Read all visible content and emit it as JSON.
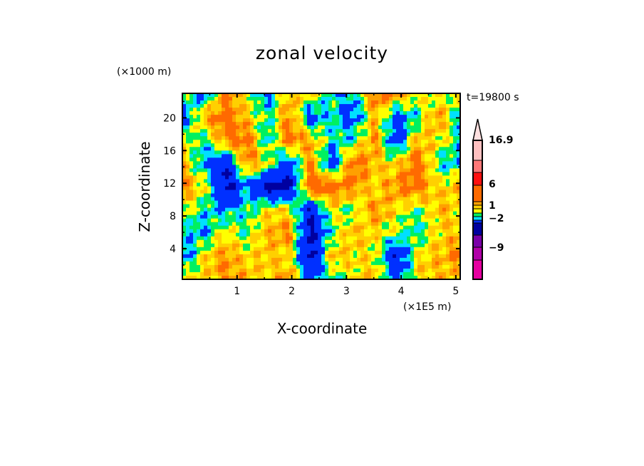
{
  "chart_data": {
    "type": "heatmap",
    "title": "zonal velocity",
    "xlabel": "X-coordinate",
    "ylabel": "Z-coordinate",
    "x_unit": "(×1E5 m)",
    "y_unit": "(×1000 m)",
    "time_label": "t=19800 s",
    "xlim": [
      0,
      5.08
    ],
    "ylim": [
      0.25,
      23
    ],
    "x_ticks": [
      "1",
      "2",
      "3",
      "4",
      "5"
    ],
    "x_tick_values": [
      1,
      2,
      3,
      4,
      5
    ],
    "y_ticks": [
      "4",
      "8",
      "12",
      "16",
      "20"
    ],
    "y_tick_values": [
      4,
      8,
      12,
      16,
      20
    ],
    "colorbar": {
      "labels": [
        "16.9",
        "6",
        "1",
        "−2",
        "−9"
      ],
      "label_values": [
        16.9,
        6,
        1,
        -2,
        -9
      ],
      "colors_bottom_to_top": [
        "#e600a0",
        "#b000a8",
        "#7a00a8",
        "#0000a0",
        "#0030ff",
        "#00e0ff",
        "#00f060",
        "#ffff00",
        "#ffd000",
        "#ffa000",
        "#ff6a00",
        "#ff1010",
        "#ff7878",
        "#ffc0c0",
        "#ffe0e0"
      ],
      "extend": "max"
    },
    "grid_approx_z_top_to_bottom": [
      [
        0,
        -3,
        3,
        1,
        -3,
        2,
        1,
        -1,
        -2,
        4,
        3,
        1,
        -0.5,
        1.5
      ],
      [
        -3,
        2,
        4,
        1.5,
        -1,
        3,
        -3,
        -1,
        -3,
        2,
        -3,
        -1,
        3,
        -2
      ],
      [
        1,
        -1,
        3,
        4,
        -2,
        4,
        2,
        -1,
        -1,
        3,
        -4,
        2,
        1,
        -1
      ],
      [
        2,
        -2,
        -5,
        3,
        1,
        -4,
        3,
        -4,
        4,
        2,
        1,
        4,
        -1,
        -2
      ],
      [
        3,
        1,
        -6,
        -2,
        -6,
        -6,
        5,
        4,
        3,
        1,
        3,
        4,
        1,
        2
      ],
      [
        1,
        -1,
        -2,
        -1,
        1,
        1,
        -5,
        1,
        -0.5,
        3,
        1,
        -0.5,
        2,
        1
      ],
      [
        -1,
        -2,
        1,
        -0.5,
        2,
        3,
        -6,
        -0.5,
        2,
        1,
        0,
        -1,
        1,
        2
      ],
      [
        -3,
        1,
        3,
        1,
        2,
        1,
        -6,
        2,
        1,
        1,
        -5,
        1,
        2,
        3
      ],
      [
        1,
        1,
        3,
        2,
        1,
        3,
        -3,
        -1,
        1,
        2,
        -3,
        1,
        2,
        1
      ]
    ]
  }
}
